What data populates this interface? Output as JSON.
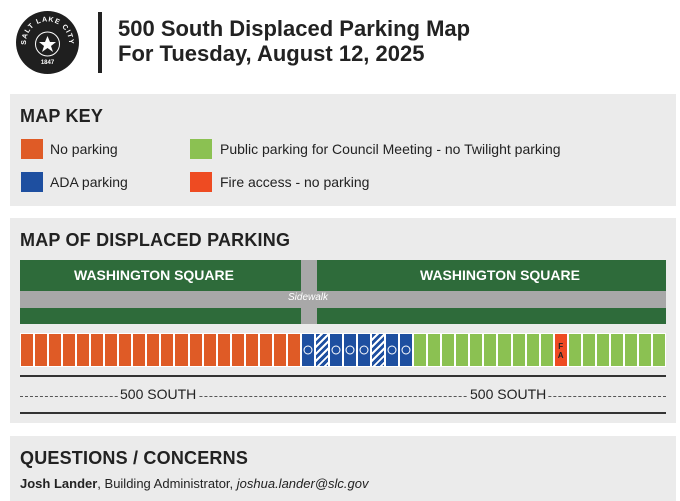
{
  "header": {
    "seal_text": "SALT LAKE CITY",
    "seal_year": "1847",
    "title": "500 South Displaced Parking Map",
    "subtitle": "For Tuesday, August 12, 2025"
  },
  "key": {
    "heading": "MAP KEY",
    "items": [
      {
        "label": "No parking",
        "color": "#df5b26"
      },
      {
        "label": "ADA parking",
        "color": "#1e4fa0"
      },
      {
        "label": "Public parking for Council Meeting - no Twilight parking",
        "color": "#8bc152"
      },
      {
        "label": "Fire access - no parking",
        "color": "#ee4b22"
      }
    ]
  },
  "map": {
    "heading": "MAP OF DISPLACED PARKING",
    "square_left": "WASHINGTON SQUARE",
    "square_right": "WASHINGTON SQUARE",
    "sidewalk": "Sidewalk",
    "street_left": "500 SOUTH",
    "street_right": "500 SOUTH",
    "fire_label": "F A",
    "stalls": {
      "no_parking_count": 20,
      "ada_pattern": [
        "ada",
        "hatch",
        "ada",
        "ada",
        "ada",
        "hatch",
        "ada",
        "ada"
      ],
      "public_before_fire": 10,
      "public_after_fire": 7
    }
  },
  "questions": {
    "heading": "QUESTIONS / CONCERNS",
    "name": "Josh Lander",
    "role": ", Building Administrator, ",
    "email": "joshua.lander@slc.gov"
  }
}
